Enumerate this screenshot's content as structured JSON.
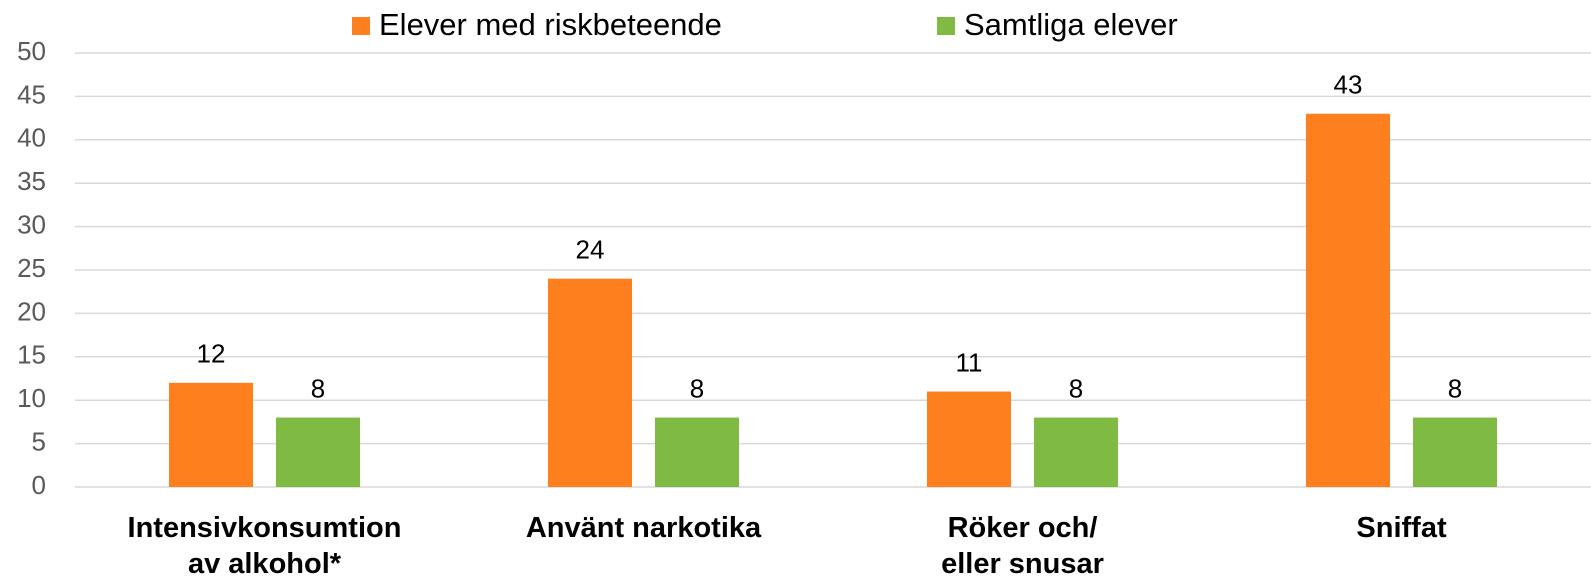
{
  "chart_data": {
    "type": "bar",
    "categories": [
      "Intensivkonsumtion\nav alkohol*",
      "Använt narkotika",
      "Röker och/\neller snusar",
      "Sniffat"
    ],
    "series": [
      {
        "name": "Elever med riskbeteende",
        "color": "#fd7f1e",
        "values": [
          12,
          24,
          11,
          43
        ]
      },
      {
        "name": "Samtliga elever",
        "color": "#7fba42",
        "values": [
          8,
          8,
          8,
          8
        ]
      }
    ],
    "ylim": [
      0,
      50
    ],
    "yticks": [
      0,
      5,
      10,
      15,
      20,
      25,
      30,
      35,
      40,
      45,
      50
    ],
    "grid": true,
    "legend": "top"
  }
}
